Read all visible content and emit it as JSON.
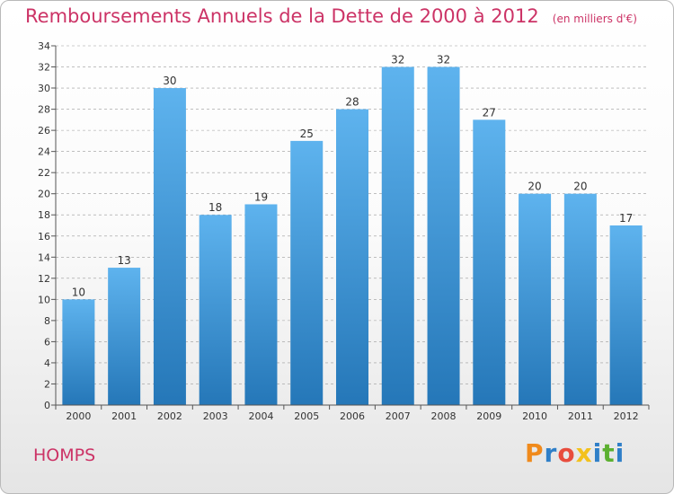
{
  "header": {
    "title": "Remboursements Annuels de la Dette de 2000 à 2012",
    "unit": "(en milliers d'€)"
  },
  "footer": {
    "commune": "HOMPS",
    "brand_letters": [
      "P",
      "r",
      "o",
      "x",
      "i",
      "t",
      "i"
    ],
    "brand_colors": [
      "#f08a1c",
      "#2f7fc8",
      "#e84c3d",
      "#f3c11c",
      "#2f7fc8",
      "#5cb030",
      "#2f7fc8"
    ]
  },
  "colors": {
    "bar_top": "#5eb3ee",
    "bar_bottom": "#2577b8",
    "grid": "#9a9a9a",
    "axis": "#555555"
  },
  "chart_data": {
    "type": "bar",
    "categories": [
      "2000",
      "2001",
      "2002",
      "2003",
      "2004",
      "2005",
      "2006",
      "2007",
      "2008",
      "2009",
      "2010",
      "2011",
      "2012"
    ],
    "values": [
      10,
      13,
      30,
      18,
      19,
      25,
      28,
      32,
      32,
      27,
      20,
      20,
      17
    ],
    "ylim": [
      0,
      34
    ],
    "yticks": [
      0,
      2,
      4,
      6,
      8,
      10,
      12,
      14,
      16,
      18,
      20,
      22,
      24,
      26,
      28,
      30,
      32,
      34
    ],
    "grid": true,
    "data_labels": true
  }
}
